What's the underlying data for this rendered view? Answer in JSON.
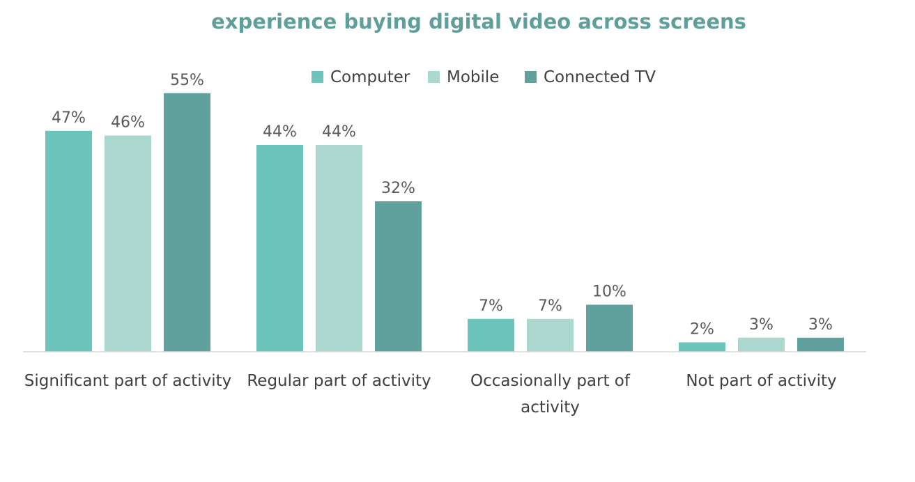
{
  "chart_data": {
    "type": "bar",
    "title": "experience buying digital video across screens",
    "categories": [
      [
        "Significant part of activity"
      ],
      [
        "Regular part of activity"
      ],
      [
        "Occasionally part of",
        "activity"
      ],
      [
        "Not part of activity"
      ]
    ],
    "series": [
      {
        "name": "Computer",
        "color": "#6cc4bd",
        "values": [
          47,
          44,
          7,
          2
        ],
        "labels": [
          "47%",
          "44%",
          "7%",
          "2%"
        ]
      },
      {
        "name": "Mobile",
        "color": "#acd7cf",
        "values": [
          46,
          44,
          7,
          3
        ],
        "labels": [
          "46%",
          "44%",
          "7%",
          "3%"
        ]
      },
      {
        "name": "Connected TV",
        "color": "#61a19d",
        "values": [
          55,
          32,
          10,
          3
        ],
        "labels": [
          "55%",
          "32%",
          "10%",
          "3%"
        ]
      }
    ],
    "ylim": [
      0,
      60
    ],
    "value_suffix": "%",
    "legend_position": "top",
    "grid": false,
    "xlabel": "",
    "ylabel": "",
    "colors": {
      "title": "#5e9e9b",
      "axis_line": "#d9d9d9"
    }
  }
}
